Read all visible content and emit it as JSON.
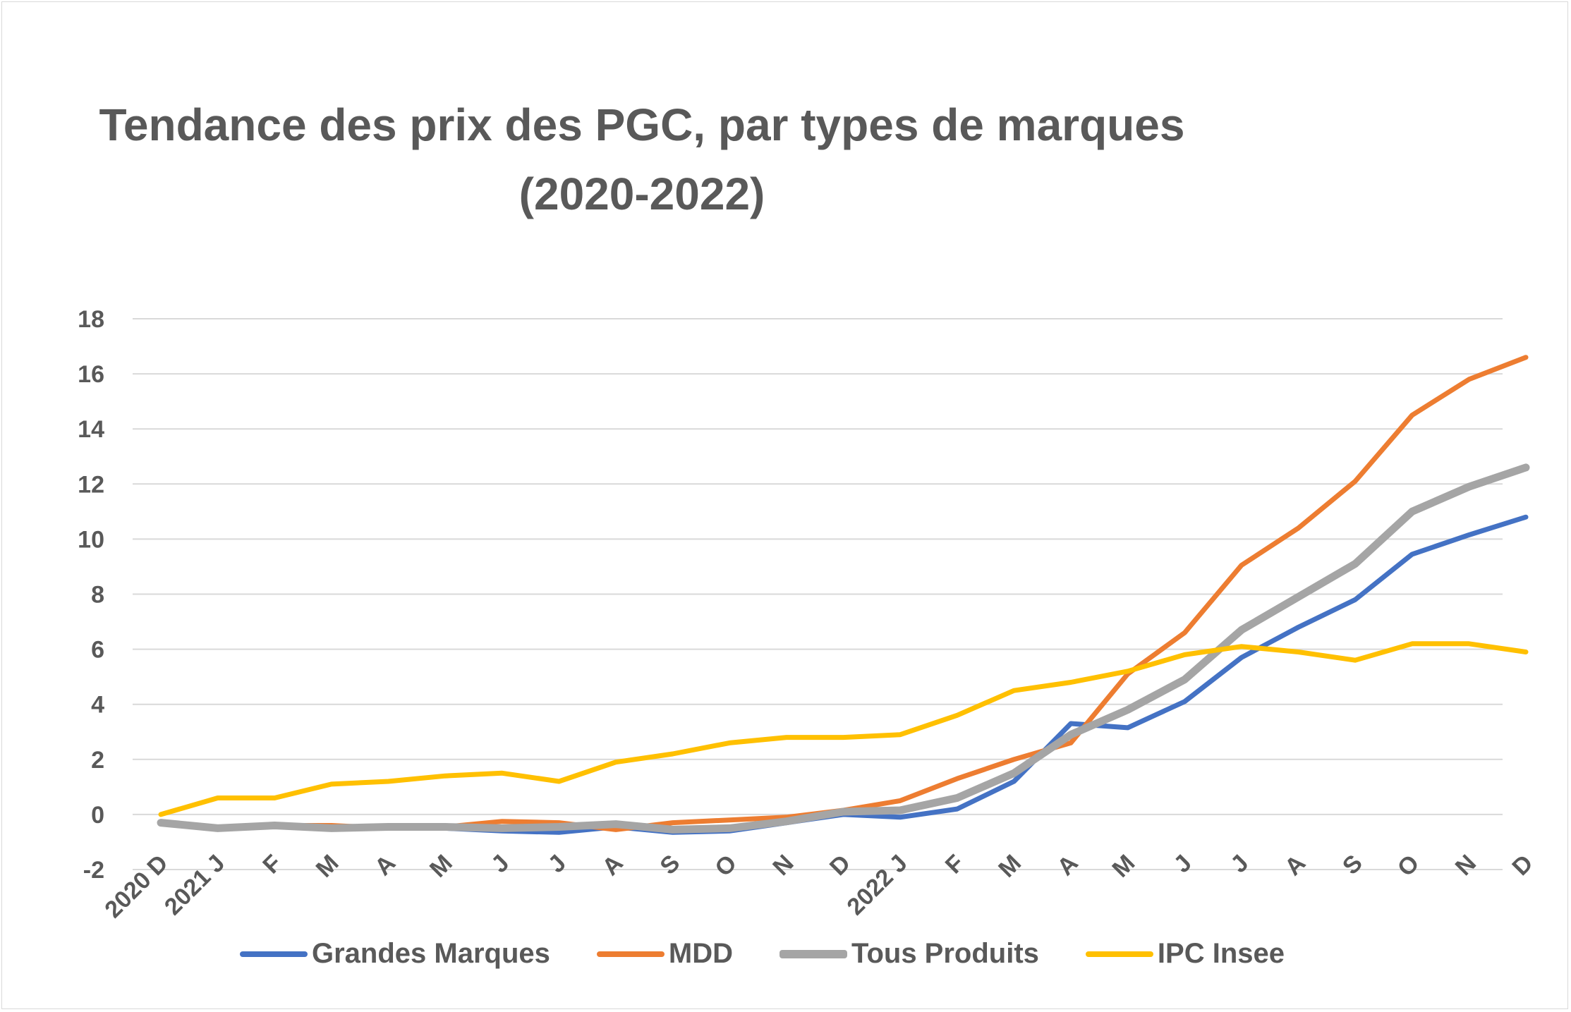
{
  "chart_data": {
    "type": "line",
    "title": "Tendance des prix des PGC, par types de marques (2020-2022)",
    "title_lines": [
      "Tendance des prix des PGC, par types de marques",
      "(2020-2022)"
    ],
    "categories": [
      "2020 D",
      "2021 J",
      "F",
      "M",
      "A",
      "M",
      "J",
      "J",
      "A",
      "S",
      "O",
      "N",
      "D",
      "2022 J",
      "F",
      "M",
      "A",
      "M",
      "J",
      "J",
      "A",
      "S",
      "O",
      "N",
      "D"
    ],
    "ylim": [
      -2,
      18
    ],
    "yticks": [
      "-2",
      "0",
      "2",
      "4",
      "6",
      "8",
      "10",
      "12",
      "14",
      "16",
      "18"
    ],
    "grid": true,
    "legend_position": "bottom",
    "series": [
      {
        "name": "Grandes Marques",
        "color": "#4472C4",
        "values": [
          -0.3,
          -0.5,
          -0.4,
          -0.5,
          -0.5,
          -0.5,
          -0.6,
          -0.65,
          -0.45,
          -0.65,
          -0.6,
          -0.3,
          0.0,
          -0.1,
          0.2,
          1.2,
          3.3,
          3.15,
          4.1,
          5.7,
          6.8,
          7.8,
          9.45,
          10.15,
          10.8
        ]
      },
      {
        "name": "MDD",
        "color": "#ED7D31",
        "values": [
          -0.3,
          -0.5,
          -0.4,
          -0.4,
          -0.5,
          -0.45,
          -0.25,
          -0.3,
          -0.55,
          -0.3,
          -0.2,
          -0.1,
          0.15,
          0.5,
          1.3,
          2.0,
          2.6,
          5.1,
          6.6,
          9.05,
          10.4,
          12.1,
          14.5,
          15.8,
          16.6
        ]
      },
      {
        "name": "Tous Produits",
        "color": "#A5A5A5",
        "values": [
          -0.3,
          -0.5,
          -0.4,
          -0.5,
          -0.45,
          -0.45,
          -0.5,
          -0.45,
          -0.35,
          -0.55,
          -0.5,
          -0.25,
          0.1,
          0.15,
          0.6,
          1.5,
          2.9,
          3.8,
          4.9,
          6.7,
          7.9,
          9.1,
          11.0,
          11.9,
          12.6
        ]
      },
      {
        "name": "IPC Insee",
        "color": "#FFC000",
        "values": [
          0.0,
          0.6,
          0.6,
          1.1,
          1.2,
          1.4,
          1.5,
          1.2,
          1.9,
          2.2,
          2.6,
          2.8,
          2.8,
          2.9,
          3.6,
          4.5,
          4.8,
          5.2,
          5.8,
          6.1,
          5.9,
          5.6,
          6.2,
          6.2,
          5.9
        ]
      }
    ]
  }
}
